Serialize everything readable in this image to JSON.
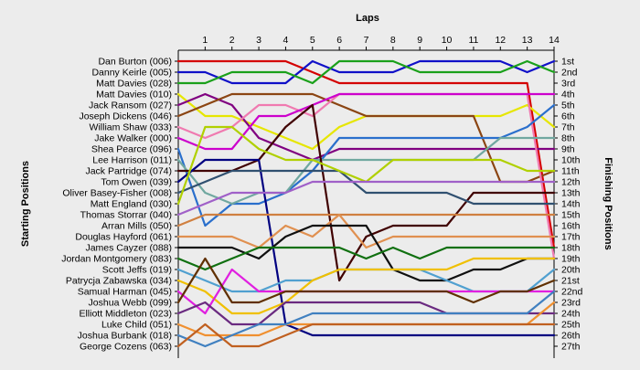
{
  "chart_data": {
    "type": "line",
    "title": "",
    "xlabel": "Laps",
    "ylabel_left": "Starting Positions",
    "ylabel_right": "Finishing Positions",
    "x": [
      1,
      2,
      3,
      4,
      5,
      6,
      7,
      8,
      9,
      10,
      11,
      12,
      13,
      14
    ],
    "finish_labels": [
      "1st",
      "2nd",
      "3rd",
      "4th",
      "5th",
      "6th",
      "7th",
      "8th",
      "9th",
      "10th",
      "11th",
      "12th",
      "13th",
      "14th",
      "15th",
      "16th",
      "17th",
      "18th",
      "19th",
      "20th",
      "21st",
      "22nd",
      "23rd",
      "24th",
      "25th",
      "26th",
      "27th"
    ],
    "series": [
      {
        "name": "Dan Burton (006)",
        "color": "#d40000",
        "values": [
          1,
          1,
          1,
          1,
          2,
          3,
          3,
          3,
          3,
          3,
          3,
          3,
          3,
          18
        ]
      },
      {
        "name": "Danny Keirle (005)",
        "color": "#1010c8",
        "values": [
          2,
          3,
          3,
          3,
          1,
          2,
          2,
          2,
          1,
          1,
          1,
          1,
          2,
          1
        ]
      },
      {
        "name": "Matt Davies (028)",
        "color": "#1aa01a",
        "values": [
          3,
          2,
          2,
          2,
          3,
          1,
          1,
          1,
          2,
          2,
          2,
          2,
          1,
          2
        ]
      },
      {
        "name": "Matt Davies (010)",
        "color": "#e6e600",
        "values": [
          6,
          6,
          7,
          8,
          9,
          7,
          6,
          6,
          6,
          6,
          6,
          6,
          5,
          7
        ]
      },
      {
        "name": "Jack Ransom (027)",
        "color": "#800080",
        "values": [
          4,
          5,
          8,
          9,
          10,
          9,
          9,
          9,
          9,
          9,
          9,
          9,
          9,
          9
        ]
      },
      {
        "name": "Joseph Dickens (046)",
        "color": "#8b4513",
        "values": [
          5,
          4,
          4,
          4,
          4,
          5,
          6,
          6,
          6,
          6,
          6,
          12,
          12,
          11
        ]
      },
      {
        "name": "William Shaw (033)",
        "color": "#f07ab0",
        "values": [
          8,
          7,
          5,
          5,
          6,
          4,
          4,
          4,
          4,
          4,
          4,
          4,
          4,
          19
        ]
      },
      {
        "name": "Jake Walker (000)",
        "color": "#cc00cc",
        "values": [
          9,
          9,
          6,
          6,
          5,
          4,
          4,
          4,
          4,
          4,
          4,
          4,
          4,
          4
        ]
      },
      {
        "name": "Shea Pearce (096)",
        "color": "#2a6fcc",
        "values": [
          16,
          14,
          14,
          13,
          11,
          8,
          8,
          8,
          8,
          8,
          8,
          8,
          7,
          5
        ]
      },
      {
        "name": "Lee Harrison (011)",
        "color": "#70a8a0",
        "values": [
          13,
          14,
          13,
          13,
          10,
          10,
          10,
          10,
          10,
          10,
          10,
          8,
          8,
          8
        ]
      },
      {
        "name": "Jack Partridge (074)",
        "color": "#400000",
        "values": [
          11,
          11,
          10,
          7,
          5,
          21,
          17,
          16,
          16,
          16,
          13,
          13,
          13,
          13
        ]
      },
      {
        "name": "Tom Owen (039)",
        "color": "#000080",
        "values": [
          10,
          10,
          10,
          25,
          26,
          26,
          26,
          26,
          26,
          26,
          26,
          26,
          26,
          26
        ]
      },
      {
        "name": "Oliver Basey-Fisher (008)",
        "color": "#305070",
        "values": [
          12,
          11,
          11,
          11,
          11,
          11,
          13,
          13,
          13,
          13,
          14,
          14,
          14,
          14
        ]
      },
      {
        "name": "Matt England (030)",
        "color": "#b0d000",
        "values": [
          7,
          7,
          9,
          10,
          10,
          11,
          12,
          10,
          10,
          10,
          10,
          10,
          11,
          11
        ]
      },
      {
        "name": "Thomas Storrar (040)",
        "color": "#a060c8",
        "values": [
          14,
          13,
          13,
          13,
          12,
          12,
          12,
          12,
          12,
          12,
          12,
          12,
          12,
          12
        ]
      },
      {
        "name": "Arran Mills (050)",
        "color": "#d08040",
        "values": [
          15,
          15,
          15,
          15,
          15,
          15,
          15,
          15,
          15,
          15,
          15,
          15,
          15,
          15
        ]
      },
      {
        "name": "Douglas Hayford (061)",
        "color": "#e09050",
        "values": [
          17,
          17,
          18,
          16,
          17,
          15,
          18,
          17,
          17,
          17,
          17,
          17,
          17,
          17
        ]
      },
      {
        "name": "James Cayzer (088)",
        "color": "#101010",
        "values": [
          18,
          18,
          19,
          17,
          16,
          16,
          16,
          20,
          21,
          21,
          20,
          20,
          19,
          19
        ]
      },
      {
        "name": "Jordan Montgomery (083)",
        "color": "#107010",
        "values": [
          20,
          19,
          18,
          18,
          18,
          18,
          19,
          18,
          19,
          18,
          18,
          18,
          18,
          18
        ]
      },
      {
        "name": "Scott Jeffs (019)",
        "color": "#50a0d0",
        "values": [
          21,
          22,
          22,
          21,
          21,
          20,
          20,
          20,
          20,
          21,
          22,
          22,
          22,
          20
        ]
      },
      {
        "name": "Patrycja Zabawska (034)",
        "color": "#f0c000",
        "values": [
          22,
          24,
          24,
          23,
          21,
          20,
          20,
          20,
          20,
          20,
          19,
          19,
          19,
          19
        ]
      },
      {
        "name": "Samual Harman (045)",
        "color": "#e020e0",
        "values": [
          24,
          20,
          22,
          22,
          22,
          22,
          22,
          22,
          22,
          22,
          22,
          22,
          22,
          22
        ]
      },
      {
        "name": "Joshua Webb (099)",
        "color": "#603000",
        "values": [
          19,
          23,
          23,
          22,
          22,
          22,
          22,
          22,
          22,
          22,
          23,
          22,
          22,
          21
        ]
      },
      {
        "name": "Elliott Middleton (023)",
        "color": "#6a2a80",
        "values": [
          23,
          25,
          25,
          23,
          23,
          23,
          23,
          23,
          23,
          24,
          24,
          24,
          24,
          24
        ]
      },
      {
        "name": "Luke Child (051)",
        "color": "#f09030",
        "values": [
          26,
          26,
          26,
          25,
          25,
          25,
          25,
          25,
          25,
          25,
          25,
          25,
          25,
          23
        ]
      },
      {
        "name": "Joshua Burbank (018)",
        "color": "#4080c0",
        "values": [
          27,
          26,
          25,
          25,
          24,
          24,
          24,
          24,
          24,
          24,
          24,
          24,
          24,
          22
        ]
      },
      {
        "name": "George Cozens (063)",
        "color": "#c06020",
        "values": [
          25,
          27,
          27,
          26,
          25,
          25,
          25,
          25,
          25,
          25,
          25,
          25,
          25,
          25
        ]
      }
    ]
  }
}
